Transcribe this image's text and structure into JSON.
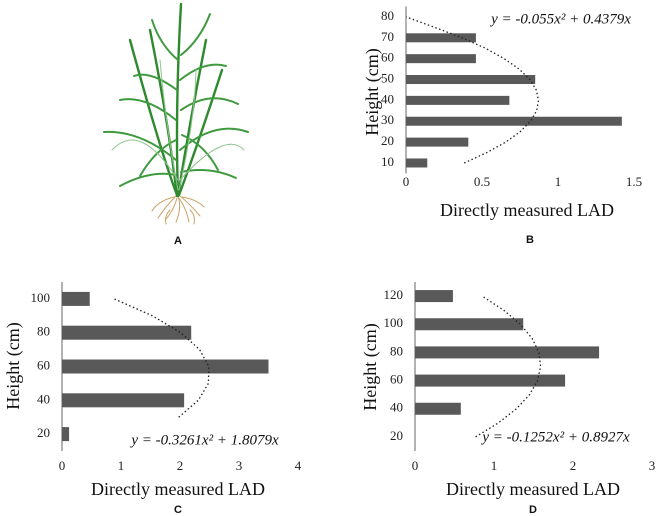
{
  "illustration": {
    "label": "A"
  },
  "chart_data": [
    {
      "type": "bar",
      "label": "B",
      "x_label": "Directly measured LAD",
      "y_label": "Height  (cm)",
      "heights": [
        10,
        20,
        30,
        40,
        50,
        60,
        70
      ],
      "values": [
        0.14,
        0.41,
        1.42,
        0.68,
        0.85,
        0.46,
        0.46
      ],
      "color": "#595959",
      "xlim": [
        0,
        1.5
      ],
      "xticks": [
        0,
        0.5,
        1,
        1.5
      ],
      "ylim": [
        5,
        85
      ],
      "yticks": [
        10,
        20,
        30,
        40,
        50,
        60,
        70,
        80
      ],
      "equation": "y = -0.055x² + 0.4379x",
      "trendline": {
        "heights": [
          10,
          15,
          20,
          25,
          30,
          35,
          40,
          45,
          50,
          55,
          60,
          65,
          70,
          75,
          80
        ],
        "values": [
          0.383,
          0.533,
          0.656,
          0.751,
          0.819,
          0.859,
          0.872,
          0.857,
          0.815,
          0.744,
          0.647,
          0.522,
          0.37,
          0.19,
          0
        ]
      }
    },
    {
      "type": "bar",
      "label": "C",
      "x_label": "Directly measured LAD",
      "y_label": "Height  (cm)",
      "heights": [
        20,
        40,
        60,
        80,
        100
      ],
      "values": [
        0.12,
        2.07,
        3.5,
        2.19,
        0.47
      ],
      "color": "#595959",
      "xlim": [
        0,
        4
      ],
      "xticks": [
        0,
        1,
        2,
        3,
        4
      ],
      "ylim": [
        10,
        110
      ],
      "yticks": [
        20,
        40,
        60,
        80,
        100
      ],
      "equation": "y = -0.3261x² + 1.8079x",
      "trendline": {
        "heights": [
          30,
          40,
          50,
          60,
          70,
          80,
          90,
          100
        ],
        "values": [
          1.978,
          2.311,
          2.482,
          2.489,
          2.333,
          2.014,
          1.533,
          0.887
        ]
      }
    },
    {
      "type": "bar",
      "label": "D",
      "x_label": "Directly measured LAD",
      "y_label": "Height  (cm)",
      "heights": [
        40,
        60,
        80,
        100,
        120
      ],
      "values": [
        0.58,
        1.9,
        2.33,
        1.37,
        0.48
      ],
      "color": "#595959",
      "xlim": [
        0,
        3
      ],
      "xticks": [
        0,
        1,
        2,
        3
      ],
      "ylim": [
        10,
        130
      ],
      "yticks": [
        20,
        40,
        60,
        80,
        100,
        120
      ],
      "equation": "y = -0.1252x² + 0.8927x",
      "trendline": {
        "heights": [
          20,
          30,
          40,
          50,
          60,
          70,
          80,
          90,
          100,
          110,
          120
        ],
        "values": [
          0.767,
          1.057,
          1.284,
          1.449,
          1.551,
          1.59,
          1.568,
          1.482,
          1.334,
          1.123,
          0.849
        ]
      }
    }
  ]
}
